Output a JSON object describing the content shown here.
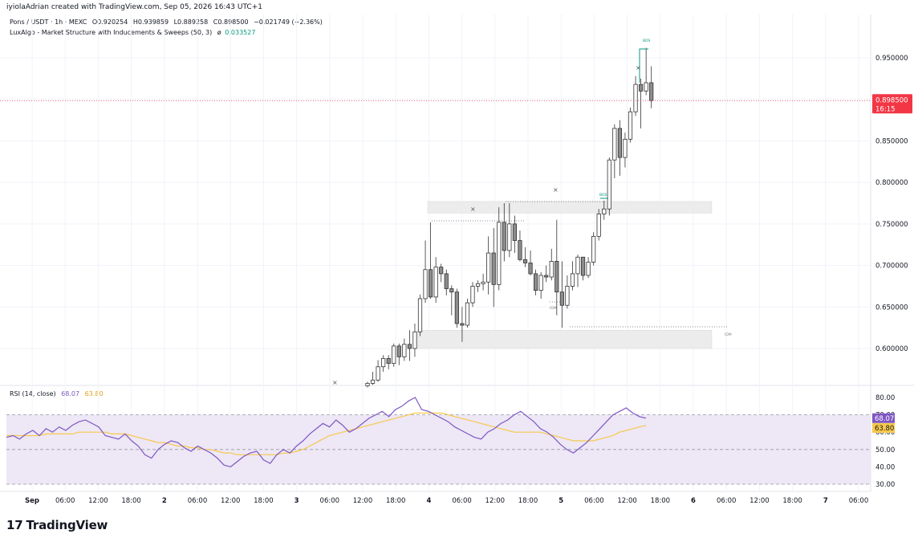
{
  "header": {
    "credit": "iyiolaAdrian created with TradingView.com, Sep 05, 2026 16:43 UTC+1"
  },
  "legend": {
    "symbol_line": "Pons / USDT · 1h · MEXC",
    "open": "O0.920254",
    "high": "H0.939859",
    "low": "L0.889258",
    "close": "C0.898500",
    "change": "−0.021749 (−2.36%)",
    "indicator_line": "LuxAlgo - Market Structure with Inducements & Sweeps (50, 3)",
    "indicator_value_icon": "eye-slash-icon",
    "indicator_value": "0.033527",
    "rsi_label": "RSI (14, close)",
    "rsi_value": "68.07",
    "rsi_ma_value": "63.80"
  },
  "colors": {
    "candle": "#8c8c8c",
    "candle_border": "#333333",
    "price_line": "#f23645",
    "price_tag_bg": "#f23645",
    "rsi_line": "#7e57c2",
    "rsi_ma": "#f7c94b",
    "rsi_band": "#ede7f6",
    "zone": "#ececec",
    "bos": "#089981"
  },
  "price_axis": {
    "ticks": [
      "0.950000",
      "0.900000",
      "0.850000",
      "0.800000",
      "0.750000",
      "0.700000",
      "0.650000",
      "0.600000"
    ],
    "current_price": "0.898500",
    "countdown": "16:15"
  },
  "rsi_axis": {
    "ticks": [
      "80.00",
      "70.00",
      "60.00",
      "50.00",
      "40.00",
      "30.00"
    ],
    "value_tag": "68.07",
    "ma_tag": "63.80"
  },
  "time_axis": {
    "labels": [
      "Sep",
      "06:00",
      "12:00",
      "18:00",
      "2",
      "06:00",
      "12:00",
      "18:00",
      "3",
      "06:00",
      "12:00",
      "18:00",
      "4",
      "06:00",
      "12:00",
      "18:00",
      "5",
      "06:00",
      "12:00",
      "18:00",
      "6",
      "06:00",
      "12:00",
      "18:00",
      "7",
      "06:00"
    ]
  },
  "annotations": {
    "bos_label": "BOS",
    "ids_label": "IDM",
    "cross_mark": "×"
  },
  "chart_data": {
    "type": "candlestick",
    "symbol": "Pons / USDT",
    "interval": "1h",
    "exchange": "MEXC",
    "ylim": [
      0.555,
      0.985
    ],
    "candles": [
      {
        "o": 0.555,
        "h": 0.56,
        "l": 0.553,
        "c": 0.558
      },
      {
        "o": 0.558,
        "h": 0.572,
        "l": 0.556,
        "c": 0.562
      },
      {
        "o": 0.562,
        "h": 0.586,
        "l": 0.56,
        "c": 0.578
      },
      {
        "o": 0.578,
        "h": 0.592,
        "l": 0.572,
        "c": 0.588
      },
      {
        "o": 0.588,
        "h": 0.592,
        "l": 0.575,
        "c": 0.582
      },
      {
        "o": 0.582,
        "h": 0.606,
        "l": 0.578,
        "c": 0.603
      },
      {
        "o": 0.603,
        "h": 0.606,
        "l": 0.58,
        "c": 0.59
      },
      {
        "o": 0.59,
        "h": 0.612,
        "l": 0.585,
        "c": 0.605
      },
      {
        "o": 0.605,
        "h": 0.622,
        "l": 0.585,
        "c": 0.6
      },
      {
        "o": 0.6,
        "h": 0.63,
        "l": 0.59,
        "c": 0.62
      },
      {
        "o": 0.62,
        "h": 0.665,
        "l": 0.615,
        "c": 0.66
      },
      {
        "o": 0.66,
        "h": 0.73,
        "l": 0.655,
        "c": 0.695
      },
      {
        "o": 0.695,
        "h": 0.752,
        "l": 0.66,
        "c": 0.662
      },
      {
        "o": 0.662,
        "h": 0.71,
        "l": 0.655,
        "c": 0.698
      },
      {
        "o": 0.698,
        "h": 0.702,
        "l": 0.68,
        "c": 0.69
      },
      {
        "o": 0.69,
        "h": 0.695,
        "l": 0.664,
        "c": 0.672
      },
      {
        "o": 0.672,
        "h": 0.676,
        "l": 0.64,
        "c": 0.668
      },
      {
        "o": 0.668,
        "h": 0.672,
        "l": 0.625,
        "c": 0.63
      },
      {
        "o": 0.63,
        "h": 0.65,
        "l": 0.608,
        "c": 0.628
      },
      {
        "o": 0.628,
        "h": 0.66,
        "l": 0.625,
        "c": 0.655
      },
      {
        "o": 0.655,
        "h": 0.68,
        "l": 0.65,
        "c": 0.675
      },
      {
        "o": 0.675,
        "h": 0.682,
        "l": 0.668,
        "c": 0.678
      },
      {
        "o": 0.678,
        "h": 0.69,
        "l": 0.67,
        "c": 0.68
      },
      {
        "o": 0.68,
        "h": 0.735,
        "l": 0.665,
        "c": 0.715
      },
      {
        "o": 0.715,
        "h": 0.745,
        "l": 0.65,
        "c": 0.677
      },
      {
        "o": 0.677,
        "h": 0.77,
        "l": 0.67,
        "c": 0.752
      },
      {
        "o": 0.752,
        "h": 0.775,
        "l": 0.705,
        "c": 0.718
      },
      {
        "o": 0.718,
        "h": 0.775,
        "l": 0.71,
        "c": 0.75
      },
      {
        "o": 0.75,
        "h": 0.76,
        "l": 0.715,
        "c": 0.73
      },
      {
        "o": 0.73,
        "h": 0.742,
        "l": 0.705,
        "c": 0.707
      },
      {
        "o": 0.707,
        "h": 0.722,
        "l": 0.698,
        "c": 0.703
      },
      {
        "o": 0.703,
        "h": 0.718,
        "l": 0.688,
        "c": 0.69
      },
      {
        "o": 0.69,
        "h": 0.695,
        "l": 0.664,
        "c": 0.67
      },
      {
        "o": 0.67,
        "h": 0.692,
        "l": 0.66,
        "c": 0.688
      },
      {
        "o": 0.688,
        "h": 0.7,
        "l": 0.68,
        "c": 0.686
      },
      {
        "o": 0.686,
        "h": 0.72,
        "l": 0.682,
        "c": 0.705
      },
      {
        "o": 0.705,
        "h": 0.755,
        "l": 0.64,
        "c": 0.668
      },
      {
        "o": 0.668,
        "h": 0.705,
        "l": 0.625,
        "c": 0.652
      },
      {
        "o": 0.652,
        "h": 0.688,
        "l": 0.648,
        "c": 0.675
      },
      {
        "o": 0.675,
        "h": 0.705,
        "l": 0.67,
        "c": 0.69
      },
      {
        "o": 0.69,
        "h": 0.713,
        "l": 0.674,
        "c": 0.71
      },
      {
        "o": 0.71,
        "h": 0.71,
        "l": 0.682,
        "c": 0.688
      },
      {
        "o": 0.688,
        "h": 0.71,
        "l": 0.685,
        "c": 0.704
      },
      {
        "o": 0.704,
        "h": 0.74,
        "l": 0.7,
        "c": 0.735
      },
      {
        "o": 0.735,
        "h": 0.768,
        "l": 0.73,
        "c": 0.762
      },
      {
        "o": 0.762,
        "h": 0.778,
        "l": 0.755,
        "c": 0.768
      },
      {
        "o": 0.768,
        "h": 0.83,
        "l": 0.76,
        "c": 0.827
      },
      {
        "o": 0.827,
        "h": 0.87,
        "l": 0.805,
        "c": 0.865
      },
      {
        "o": 0.865,
        "h": 0.875,
        "l": 0.808,
        "c": 0.83
      },
      {
        "o": 0.83,
        "h": 0.86,
        "l": 0.818,
        "c": 0.852
      },
      {
        "o": 0.852,
        "h": 0.89,
        "l": 0.848,
        "c": 0.885
      },
      {
        "o": 0.885,
        "h": 0.928,
        "l": 0.88,
        "c": 0.918
      },
      {
        "o": 0.918,
        "h": 0.925,
        "l": 0.865,
        "c": 0.91
      },
      {
        "o": 0.91,
        "h": 0.962,
        "l": 0.905,
        "c": 0.92
      },
      {
        "o": 0.92,
        "h": 0.939859,
        "l": 0.889258,
        "c": 0.8985
      }
    ],
    "zones": [
      {
        "label": "upper",
        "top": 0.777,
        "bottom": 0.763
      },
      {
        "label": "lower",
        "top": 0.622,
        "bottom": 0.6
      }
    ],
    "rsi": {
      "ylim": [
        25,
        85
      ],
      "overbought": 70,
      "oversold": 30,
      "mid": 50,
      "values": [
        57,
        58,
        56,
        59,
        61,
        58,
        62,
        60,
        63,
        61,
        64,
        66,
        67,
        65,
        63,
        58,
        57,
        56,
        59,
        55,
        52,
        47,
        45,
        50,
        53,
        55,
        54,
        51,
        49,
        52,
        50,
        48,
        45,
        41,
        40,
        43,
        46,
        48,
        49,
        44,
        42,
        47,
        50,
        48,
        52,
        55,
        59,
        62,
        65,
        63,
        67,
        64,
        60,
        62,
        65,
        68,
        70,
        72,
        69,
        73,
        75,
        78,
        80,
        73,
        72,
        70,
        68,
        66,
        63,
        61,
        59,
        57,
        56,
        60,
        62,
        65,
        67,
        70,
        72,
        69,
        66,
        62,
        60,
        57,
        53,
        50,
        48,
        51,
        54,
        58,
        62,
        66,
        70,
        72,
        74,
        71,
        69,
        68.07
      ],
      "ma_values": [
        58,
        58,
        58,
        58,
        58,
        58,
        59,
        59,
        59,
        59,
        59,
        60,
        60,
        60,
        60,
        60,
        59,
        59,
        59,
        58,
        57,
        56,
        55,
        54,
        54,
        53,
        52,
        52,
        51,
        51,
        50,
        50,
        49,
        48,
        48,
        47,
        47,
        47,
        47,
        47,
        47,
        47,
        48,
        48,
        49,
        50,
        52,
        54,
        56,
        58,
        59,
        60,
        61,
        62,
        63,
        64,
        65,
        66,
        67,
        68,
        69,
        70,
        71,
        71,
        71,
        71,
        71,
        70,
        69,
        68,
        67,
        66,
        65,
        64,
        63,
        62,
        61,
        60,
        60,
        60,
        60,
        60,
        59,
        58,
        57,
        56,
        55,
        55,
        55,
        55,
        56,
        57,
        58,
        60,
        61,
        62,
        63,
        63.8
      ]
    }
  }
}
